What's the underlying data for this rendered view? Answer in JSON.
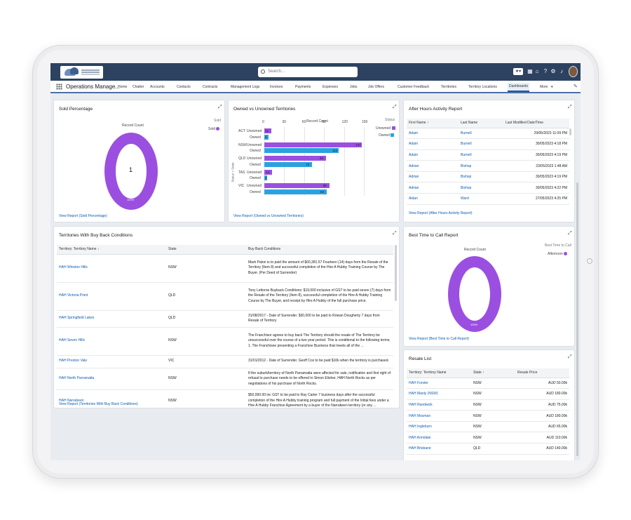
{
  "header": {
    "search_placeholder": "Search..."
  },
  "nav": {
    "app_name": "Operations Manage...",
    "items": [
      "Home",
      "Chatter",
      "Accounts",
      "Contacts",
      "Contracts",
      "Management Logs",
      "Invoices",
      "Payments",
      "Expenses",
      "Jobs",
      "Job Offers",
      "Customer Feedback",
      "Territories",
      "Territory Locations",
      "Dashboards",
      "More"
    ]
  },
  "sold": {
    "title": "Sold Percentage",
    "record_count": "Record Count",
    "legend_title": "Sold",
    "legend_item": "Sold",
    "center": "1",
    "pct": "100%",
    "link": "View Report (Sold Percentage)",
    "color": "#9b4fe0"
  },
  "owned": {
    "title": "Owned vs Unowned Territories",
    "record_count": "Record Count",
    "axis_label": "Status > State",
    "legend_title": "Status",
    "legend_unowned": "Unowned",
    "legend_owned": "Owned",
    "ticks": [
      "0",
      "30",
      "60",
      "90",
      "120",
      "150"
    ],
    "link": "View Report (Owned vs Unowned Territories)"
  },
  "chart_data": {
    "type": "bar",
    "title": "Owned vs Unowned Territories",
    "xlabel": "Record Count",
    "ylabel": "Status > State",
    "xlim": [
      0,
      150
    ],
    "categories": [
      "ACT",
      "NSW",
      "QLD",
      "TAS",
      "VIC"
    ],
    "series": [
      {
        "name": "Unowned",
        "color": "#9b4fe0",
        "values": [
          11,
          147,
          93,
          12,
          98
        ]
      },
      {
        "name": "Owned",
        "color": "#2ba2e0",
        "values": [
          6,
          112,
          72,
          4,
          94
        ]
      }
    ],
    "sub_labels": [
      "Unowned",
      "Owned"
    ]
  },
  "afterhours": {
    "title": "After Hours Activity Report",
    "cols": [
      "First Name ↑",
      "Last Name",
      "Last Modified Date/Time"
    ],
    "rows": [
      [
        "Adam",
        "Burnell",
        "29/05/2023 11:09 PM"
      ],
      [
        "Adam",
        "Burnell",
        "30/05/2023 4:18 PM"
      ],
      [
        "Adam",
        "Burnell",
        "30/05/2023 4:19 PM"
      ],
      [
        "Adrian",
        "Bishop",
        "23/05/2023 1:48 AM"
      ],
      [
        "Adrian",
        "Bishop",
        "30/05/2023 4:19 PM"
      ],
      [
        "Adrian",
        "Bishop",
        "30/05/2023 4:22 PM"
      ],
      [
        "Aidan",
        "Ward",
        "27/05/2023 4:25 PM"
      ]
    ],
    "link": "View Report (After Hours Activity Report)"
  },
  "buyback": {
    "title": "Territories With Buy Back Conditions",
    "cols": [
      "Territory: Territory Name ↓",
      "State",
      "Buy Back Conditions"
    ],
    "rows": [
      [
        "HAH Winston Hills",
        "NSW",
        "Mark Paton is to paid the amount of $60,381.57 Fourteen (14) days from the Resale of the Territory (Item 8) and successful completion of the Hire A Hubby Training Course by The Buyer. (Per Deed of Surrender)"
      ],
      [
        "HAH Victoria Point",
        "QLD",
        "Tony Lettorne Buyback Conditions: $19,000 inclusive of GST to be paid seven (7) days from the Resale of the Territory (Item 8), successful completion of the Hire A Hubby Training Course by The Buyer, and receipt by Hire A Hubby of the full purchase price."
      ],
      [
        "HAH Springfield Lakes",
        "QLD",
        "31/08/2017 - Date of Surrender. $30,000 to be paid to Rowan Dougherty 7 days from Resale of Territory"
      ],
      [
        "HAH Seven Hills",
        "NSW",
        "The Franchisor agrees to buy back The Territory should the resale of The Territory be unsuccessful over the course of a two year period. This is conditional to the following terms; 1. The Franchisee presenting a Franchise Business that meets all of the ..."
      ],
      [
        "HAH Preston Vale",
        "VIC",
        "31/01/2012 - Date of Surrender. Geoff Cox to be paid $10k when the territory is purchased."
      ],
      [
        "HAH North Parramatta",
        "NSW",
        "If the suburb/territory of North Parramatta were affected for sale, notification and first right of refusal to purchase needs to be offered to Simon Elisher, HAH North Rocks as per negotiations of his purchase of North Rocks."
      ],
      [
        "HAH Narrabeen",
        "NSW",
        "$50,000.00 inc GST to be paid to Ray Carter 7 business days after the successful completion of the Hire A Hubby training program and full payment of the Initial fees under a Hire A Hubby Franchise Agreement by a buyer of the Narrabeen territory (or any ..."
      ]
    ],
    "link": "View Report (Territories With Buy Back Conditions)"
  },
  "besttime": {
    "title": "Best Time to Call Report",
    "record_count": "Record Count",
    "legend_title": "Best Time to Call",
    "legend_item": "Afternoon",
    "pct": "100%",
    "link": "View Report (Best Time to Call Report)"
  },
  "resale": {
    "title": "Resale List",
    "cols": [
      "Territory: Territory Name",
      "State ↑",
      "Resale Price"
    ],
    "rows": [
      [
        "HAH Forster",
        "NSW",
        "AUD 50.00k"
      ],
      [
        "HAH Manly (NSW)",
        "NSW",
        "AUD 180.00k"
      ],
      [
        "HAH Randwick",
        "NSW",
        "AUD 75.00k"
      ],
      [
        "HAH Mosman",
        "NSW",
        "AUD 180.00k"
      ],
      [
        "HAH Ingleburn",
        "NSW",
        "AUD 65.00k"
      ],
      [
        "HAH Armidale",
        "NSW",
        "AUD 110.00k"
      ],
      [
        "HAH Brisbane",
        "QLD",
        "AUD 140.00k"
      ]
    ]
  }
}
